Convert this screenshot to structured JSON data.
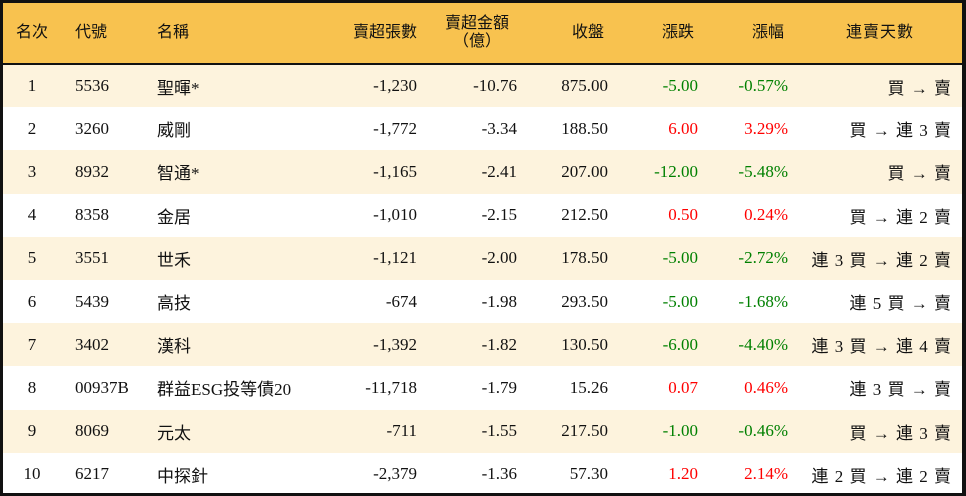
{
  "headers": [
    "名次",
    "代號",
    "名稱",
    "賣超張數",
    "賣超金額",
    "（億）",
    "收盤",
    "漲跌",
    "漲幅",
    "連賣天數"
  ],
  "colors": {
    "header_bg": "#F8C24F",
    "row_alt_bg": "#FDF3DD",
    "up": "#FF0000",
    "down": "#008000"
  },
  "rows": [
    {
      "rank": "1",
      "code": "5536",
      "name": "聖暉*",
      "shares": "-1,230",
      "amount": "-10.76",
      "close": "875.00",
      "change": "-5.00",
      "pct": "-0.57%",
      "streak": "買 → 賣",
      "dir": "down"
    },
    {
      "rank": "2",
      "code": "3260",
      "name": "威剛",
      "shares": "-1,772",
      "amount": "-3.34",
      "close": "188.50",
      "change": "6.00",
      "pct": "3.29%",
      "streak": "買 → 連 3 賣",
      "dir": "up"
    },
    {
      "rank": "3",
      "code": "8932",
      "name": "智通*",
      "shares": "-1,165",
      "amount": "-2.41",
      "close": "207.00",
      "change": "-12.00",
      "pct": "-5.48%",
      "streak": "買 → 賣",
      "dir": "down"
    },
    {
      "rank": "4",
      "code": "8358",
      "name": "金居",
      "shares": "-1,010",
      "amount": "-2.15",
      "close": "212.50",
      "change": "0.50",
      "pct": "0.24%",
      "streak": "買 → 連 2 賣",
      "dir": "up"
    },
    {
      "rank": "5",
      "code": "3551",
      "name": "世禾",
      "shares": "-1,121",
      "amount": "-2.00",
      "close": "178.50",
      "change": "-5.00",
      "pct": "-2.72%",
      "streak": "連 3 買 → 連 2 賣",
      "dir": "down"
    },
    {
      "rank": "6",
      "code": "5439",
      "name": "高技",
      "shares": "-674",
      "amount": "-1.98",
      "close": "293.50",
      "change": "-5.00",
      "pct": "-1.68%",
      "streak": "連 5 買 → 賣",
      "dir": "down"
    },
    {
      "rank": "7",
      "code": "3402",
      "name": "漢科",
      "shares": "-1,392",
      "amount": "-1.82",
      "close": "130.50",
      "change": "-6.00",
      "pct": "-4.40%",
      "streak": "連 3 買 → 連 4 賣",
      "dir": "down"
    },
    {
      "rank": "8",
      "code": "00937B",
      "name": "群益ESG投等債20",
      "shares": "-11,718",
      "amount": "-1.79",
      "close": "15.26",
      "change": "0.07",
      "pct": "0.46%",
      "streak": "連 3 買 → 賣",
      "dir": "up"
    },
    {
      "rank": "9",
      "code": "8069",
      "name": "元太",
      "shares": "-711",
      "amount": "-1.55",
      "close": "217.50",
      "change": "-1.00",
      "pct": "-0.46%",
      "streak": "買 → 連 3 賣",
      "dir": "down"
    },
    {
      "rank": "10",
      "code": "6217",
      "name": "中探針",
      "shares": "-2,379",
      "amount": "-1.36",
      "close": "57.30",
      "change": "1.20",
      "pct": "2.14%",
      "streak": "連 2 買 → 連 2 賣",
      "dir": "up"
    }
  ]
}
